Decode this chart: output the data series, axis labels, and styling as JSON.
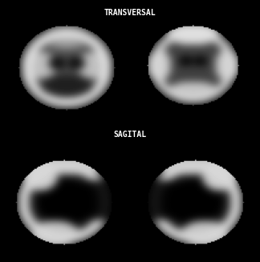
{
  "background_color": "#000000",
  "label_transversal": "TRANSVERSAL",
  "label_sagital": "SAGITAL",
  "label_color": "#ffffff",
  "label_fontsize": 7,
  "label_font": "monospace",
  "fig_width": 3.24,
  "fig_height": 3.27,
  "dpi": 100
}
